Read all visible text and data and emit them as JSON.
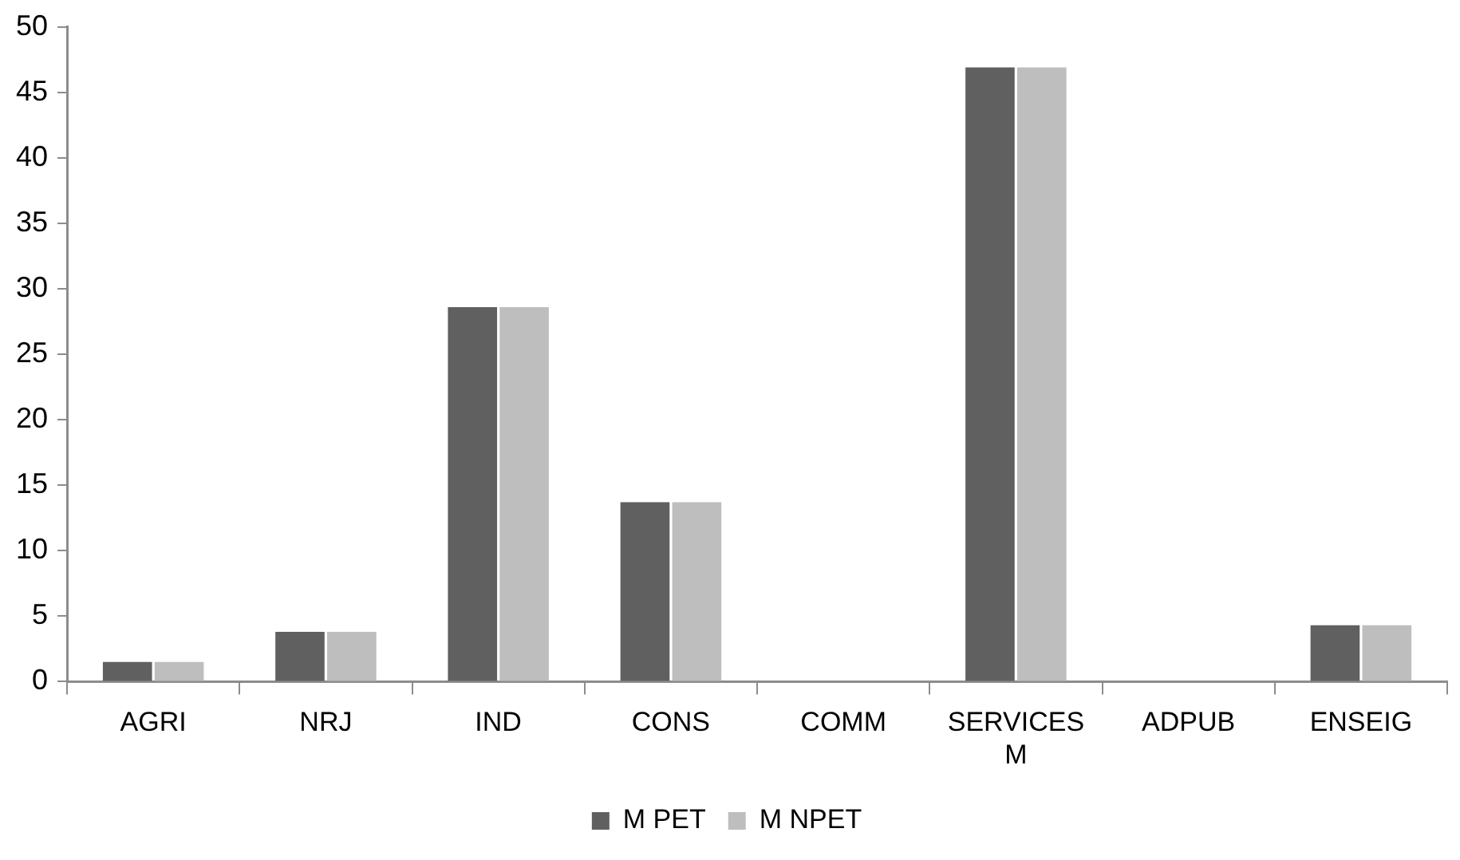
{
  "chart_data": {
    "type": "bar",
    "categories": [
      "AGRI",
      "NRJ",
      "IND",
      "CONS",
      "COMM",
      "SERVICES M",
      "ADPUB",
      "ENSEIG"
    ],
    "series": [
      {
        "name": "M PET",
        "color": "#606060",
        "values": [
          1.5,
          3.8,
          28.6,
          13.7,
          0,
          46.9,
          0,
          4.3
        ]
      },
      {
        "name": "M NPET",
        "color": "#bebebe",
        "values": [
          1.5,
          3.8,
          28.6,
          13.7,
          0,
          46.9,
          0,
          4.3
        ]
      }
    ],
    "ylim": [
      0,
      50
    ],
    "yticks": [
      0,
      5,
      10,
      15,
      20,
      25,
      30,
      35,
      40,
      45,
      50
    ],
    "grid": false,
    "legend": "bottom"
  }
}
